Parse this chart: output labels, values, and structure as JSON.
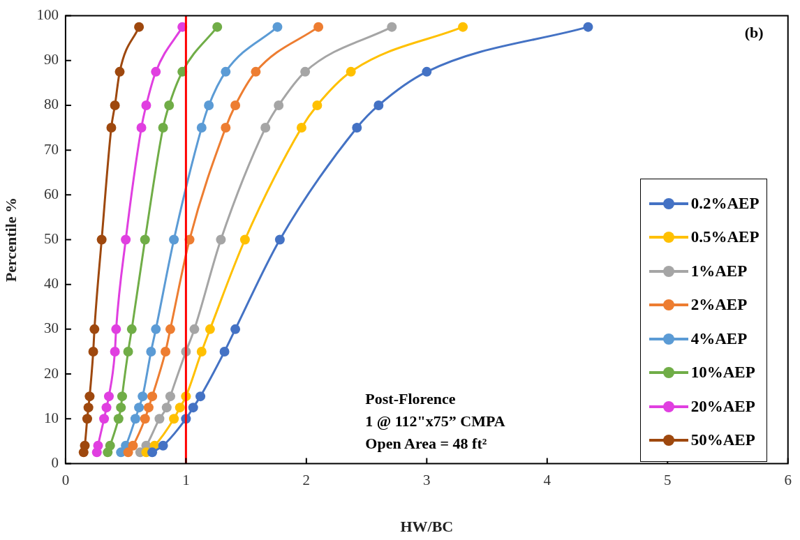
{
  "chart_data": {
    "type": "line",
    "xlabel": "HW/BC",
    "ylabel": "Percentile %",
    "xlim": [
      0,
      6
    ],
    "xticks": [
      0,
      1,
      2,
      3,
      4,
      5,
      6
    ],
    "ylim": [
      0,
      100
    ],
    "yticks": [
      0,
      10,
      20,
      30,
      40,
      50,
      60,
      70,
      80,
      90,
      100
    ],
    "grid": false,
    "legend": "bottom right",
    "marker": "circle",
    "line_style": "solid",
    "series": [
      {
        "name": "0.2%AEP",
        "color": "#4472c4",
        "x": [
          0.72,
          0.81,
          1.0,
          1.06,
          1.12,
          1.32,
          1.41,
          1.78,
          2.42,
          2.6,
          3.0,
          4.34
        ],
        "values": [
          2.5,
          4,
          10,
          12.5,
          15,
          25,
          30,
          50,
          75,
          80,
          87.5,
          97.5
        ]
      },
      {
        "name": "0.5%AEP",
        "color": "#ffc000",
        "x": [
          0.67,
          0.74,
          0.9,
          0.95,
          1.0,
          1.13,
          1.2,
          1.49,
          1.96,
          2.09,
          2.37,
          3.3
        ],
        "values": [
          2.5,
          4,
          10,
          12.5,
          15,
          25,
          30,
          50,
          75,
          80,
          87.5,
          97.5
        ]
      },
      {
        "name": "1%AEP",
        "color": "#a5a5a5",
        "x": [
          0.62,
          0.67,
          0.78,
          0.84,
          0.87,
          1.0,
          1.07,
          1.29,
          1.66,
          1.77,
          1.99,
          2.71
        ],
        "values": [
          2.5,
          4,
          10,
          12.5,
          15,
          25,
          30,
          50,
          75,
          80,
          87.5,
          97.5
        ]
      },
      {
        "name": "2%AEP",
        "color": "#ed7d31",
        "x": [
          0.52,
          0.56,
          0.66,
          0.69,
          0.72,
          0.83,
          0.87,
          1.03,
          1.33,
          1.41,
          1.58,
          2.1
        ],
        "values": [
          2.5,
          4,
          10,
          12.5,
          15,
          25,
          30,
          50,
          75,
          80,
          87.5,
          97.5
        ]
      },
      {
        "name": "4%AEP",
        "color": "#5b9bd5",
        "x": [
          0.46,
          0.5,
          0.58,
          0.61,
          0.64,
          0.71,
          0.75,
          0.9,
          1.13,
          1.19,
          1.33,
          1.76
        ],
        "values": [
          2.5,
          4,
          10,
          12.5,
          15,
          25,
          30,
          50,
          75,
          80,
          87.5,
          97.5
        ]
      },
      {
        "name": "10%AEP",
        "color": "#70ad47",
        "x": [
          0.35,
          0.37,
          0.44,
          0.46,
          0.47,
          0.52,
          0.55,
          0.66,
          0.81,
          0.86,
          0.97,
          1.26
        ],
        "values": [
          2.5,
          4,
          10,
          12.5,
          15,
          25,
          30,
          50,
          75,
          80,
          87.5,
          97.5
        ]
      },
      {
        "name": "20%AEP",
        "color": "#e03fe0",
        "x": [
          0.26,
          0.27,
          0.32,
          0.34,
          0.36,
          0.41,
          0.42,
          0.5,
          0.63,
          0.67,
          0.75,
          0.97
        ],
        "values": [
          2.5,
          4,
          10,
          12.5,
          15,
          25,
          30,
          50,
          75,
          80,
          87.5,
          97.5
        ]
      },
      {
        "name": "50%AEP",
        "color": "#9e480e",
        "x": [
          0.15,
          0.16,
          0.18,
          0.19,
          0.2,
          0.23,
          0.24,
          0.3,
          0.38,
          0.41,
          0.45,
          0.61
        ],
        "values": [
          2.5,
          4,
          10,
          12.5,
          15,
          25,
          30,
          50,
          75,
          80,
          87.5,
          97.5
        ]
      }
    ],
    "ref_lines": [
      {
        "axis": "x",
        "value": 1,
        "color": "#ff0000"
      }
    ],
    "annotations": [
      "(b)",
      "Post-Florence\n1 @ 112\"x75” CMPA\nOpen Area = 48 ft²"
    ]
  }
}
